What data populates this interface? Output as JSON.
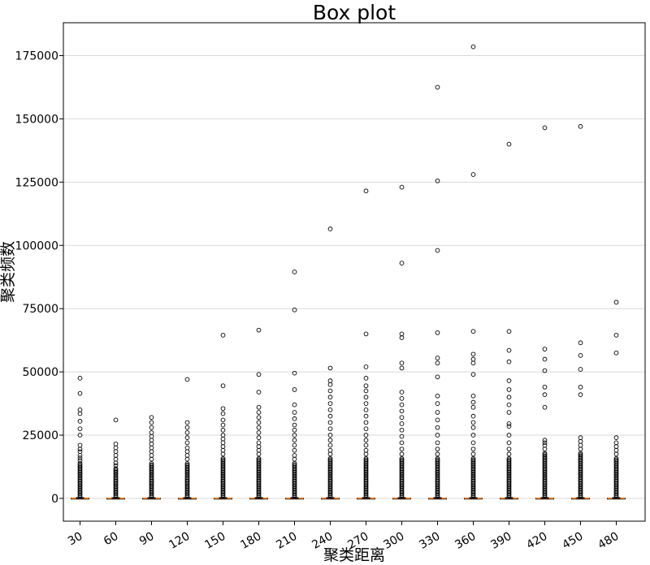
{
  "chart_data": {
    "type": "box",
    "title": "Box plot",
    "xlabel": "聚类距离",
    "ylabel": "聚类频数",
    "ylim": [
      -9000,
      188000
    ],
    "yticks": [
      0,
      25000,
      50000,
      75000,
      100000,
      125000,
      150000,
      175000
    ],
    "ytick_labels": [
      "0",
      "25000",
      "50000",
      "75000",
      "100000",
      "125000",
      "150000",
      "175000"
    ],
    "grid": "y",
    "categories": [
      "30",
      "60",
      "90",
      "120",
      "150",
      "180",
      "210",
      "240",
      "270",
      "300",
      "330",
      "360",
      "390",
      "420",
      "450",
      "480"
    ],
    "boxes": [
      {
        "q1": 0,
        "median": 0,
        "q3": 120,
        "whisker_low": 0,
        "whisker_high": 300,
        "dense_top": 14000,
        "outliers": [
          15000,
          16000,
          17000,
          18500,
          19500,
          21000,
          25000,
          27500,
          30500,
          33500,
          35000,
          41500,
          47500
        ]
      },
      {
        "q1": 0,
        "median": 0,
        "q3": 110,
        "whisker_low": 0,
        "whisker_high": 280,
        "dense_top": 12000,
        "outliers": [
          13000,
          14000,
          15500,
          17000,
          18500,
          20000,
          21500,
          31000
        ]
      },
      {
        "q1": 0,
        "median": 0,
        "q3": 110,
        "whisker_low": 0,
        "whisker_high": 280,
        "dense_top": 14000,
        "outliers": [
          15500,
          17000,
          18500,
          20000,
          21500,
          23000,
          24500,
          26000,
          28000,
          30000,
          32000
        ]
      },
      {
        "q1": 0,
        "median": 0,
        "q3": 110,
        "whisker_low": 0,
        "whisker_high": 280,
        "dense_top": 14000,
        "outliers": [
          15500,
          17000,
          18500,
          20000,
          22000,
          24000,
          26000,
          28000,
          30000,
          47000
        ]
      },
      {
        "q1": 0,
        "median": 0,
        "q3": 120,
        "whisker_low": 0,
        "whisker_high": 300,
        "dense_top": 16000,
        "outliers": [
          17500,
          19000,
          20500,
          22000,
          23500,
          25000,
          27000,
          29000,
          31000,
          33500,
          35500,
          44500,
          64500
        ]
      },
      {
        "q1": 0,
        "median": 0,
        "q3": 120,
        "whisker_low": 0,
        "whisker_high": 300,
        "dense_top": 16000,
        "outliers": [
          17500,
          19000,
          20500,
          22000,
          24000,
          26000,
          28000,
          30000,
          32000,
          34000,
          36000,
          42000,
          49000,
          66500
        ]
      },
      {
        "q1": 0,
        "median": 0,
        "q3": 120,
        "whisker_low": 0,
        "whisker_high": 300,
        "dense_top": 14000,
        "outliers": [
          15500,
          17000,
          19000,
          21000,
          23000,
          25000,
          27000,
          29000,
          31500,
          34000,
          37000,
          43000,
          49500,
          74500,
          89500
        ]
      },
      {
        "q1": 0,
        "median": 0,
        "q3": 120,
        "whisker_low": 0,
        "whisker_high": 300,
        "dense_top": 16000,
        "outliers": [
          17500,
          19000,
          21000,
          23000,
          25000,
          27500,
          30000,
          32500,
          35000,
          37500,
          40000,
          42500,
          45000,
          46500,
          51500,
          106500
        ]
      },
      {
        "q1": 0,
        "median": 0,
        "q3": 120,
        "whisker_low": 0,
        "whisker_high": 300,
        "dense_top": 16000,
        "outliers": [
          17500,
          19000,
          21000,
          23000,
          25000,
          27500,
          30000,
          32500,
          35000,
          37500,
          40000,
          42500,
          44500,
          47500,
          52000,
          65000,
          121500
        ]
      },
      {
        "q1": 0,
        "median": 0,
        "q3": 120,
        "whisker_low": 0,
        "whisker_high": 300,
        "dense_top": 16000,
        "outliers": [
          17500,
          19500,
          22000,
          24500,
          27000,
          29500,
          32000,
          34500,
          37000,
          39500,
          42000,
          51500,
          53500,
          63500,
          65000,
          93000,
          123000
        ]
      },
      {
        "q1": 0,
        "median": 0,
        "q3": 120,
        "whisker_low": 0,
        "whisker_high": 300,
        "dense_top": 16000,
        "outliers": [
          17500,
          19500,
          22000,
          25000,
          28000,
          31000,
          34000,
          37500,
          40500,
          48000,
          53500,
          55500,
          65500,
          98000,
          125500,
          162500
        ]
      },
      {
        "q1": 0,
        "median": 0,
        "q3": 120,
        "whisker_low": 0,
        "whisker_high": 300,
        "dense_top": 16000,
        "outliers": [
          17500,
          19500,
          22000,
          25000,
          28000,
          30000,
          32500,
          36000,
          38000,
          40500,
          49000,
          53500,
          55000,
          57000,
          66000,
          128000,
          178500
        ]
      },
      {
        "q1": 0,
        "median": 0,
        "q3": 120,
        "whisker_low": 0,
        "whisker_high": 300,
        "dense_top": 16000,
        "outliers": [
          17500,
          19500,
          22000,
          25000,
          28500,
          29500,
          34000,
          37000,
          40000,
          43000,
          46500,
          54000,
          58500,
          66000,
          140000
        ]
      },
      {
        "q1": 0,
        "median": 0,
        "q3": 120,
        "whisker_low": 0,
        "whisker_high": 300,
        "dense_top": 18000,
        "outliers": [
          19500,
          21000,
          22000,
          23000,
          36000,
          41000,
          44000,
          50500,
          55000,
          59000,
          146500
        ]
      },
      {
        "q1": 0,
        "median": 0,
        "q3": 120,
        "whisker_low": 0,
        "whisker_high": 300,
        "dense_top": 18000,
        "outliers": [
          19500,
          21000,
          22500,
          24000,
          41000,
          44000,
          51000,
          56500,
          61500,
          147000
        ]
      },
      {
        "q1": 0,
        "median": 0,
        "q3": 120,
        "whisker_low": 0,
        "whisker_high": 300,
        "dense_top": 16000,
        "outliers": [
          17500,
          19000,
          20500,
          22000,
          24000,
          57500,
          64500,
          77500
        ]
      }
    ]
  }
}
